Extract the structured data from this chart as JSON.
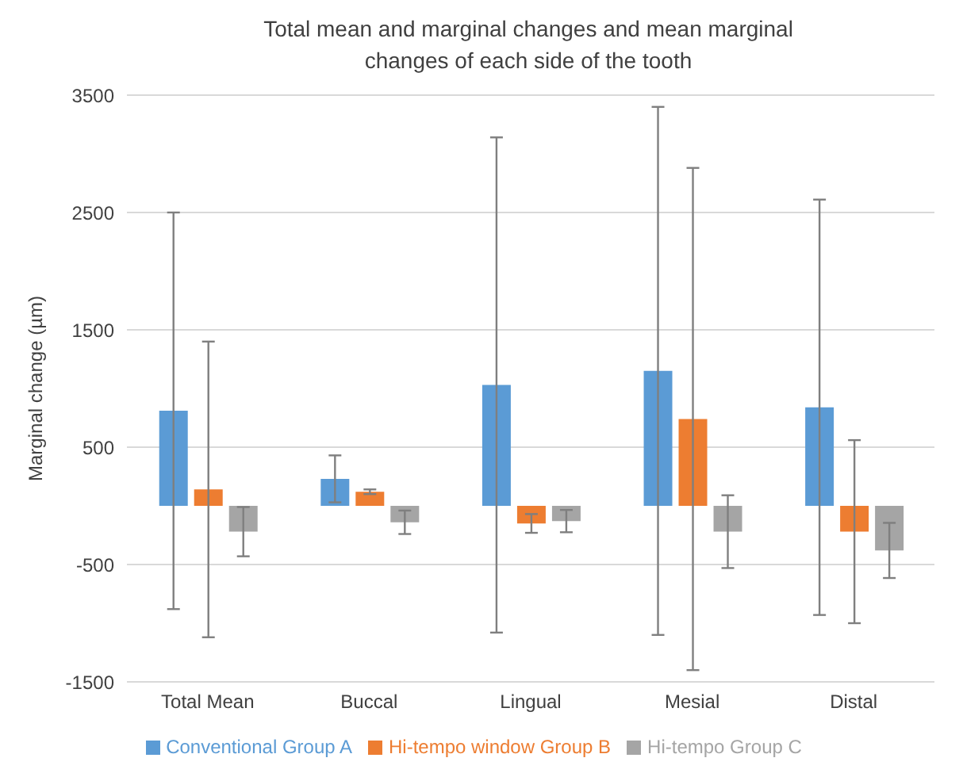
{
  "chart_data": {
    "type": "bar",
    "title": "Total mean and marginal changes and mean marginal changes of each side of the tooth",
    "ylabel": "Marginal change (µm)",
    "categories": [
      "Total Mean",
      "Buccal",
      "Lingual",
      "Mesial",
      "Distal"
    ],
    "series": [
      {
        "name": "Conventional Group A",
        "color": "#5b9bd5",
        "values": [
          810,
          230,
          1030,
          1150,
          840
        ],
        "errors": [
          1690,
          200,
          2110,
          2250,
          1770
        ]
      },
      {
        "name": "Hi-tempo window Group B",
        "color": "#ed7d31",
        "values": [
          140,
          120,
          -150,
          740,
          -220
        ],
        "errors": [
          1260,
          20,
          80,
          2140,
          780
        ]
      },
      {
        "name": "Hi-tempo Group C",
        "color": "#a5a5a5",
        "values": [
          -220,
          -140,
          -130,
          -220,
          -380
        ],
        "errors": [
          210,
          100,
          95,
          310,
          235
        ]
      }
    ],
    "ylim": [
      -1500,
      3500
    ],
    "yticks": [
      -1500,
      -500,
      500,
      1500,
      2500,
      3500
    ],
    "grid": "y",
    "legend": "bottom"
  }
}
